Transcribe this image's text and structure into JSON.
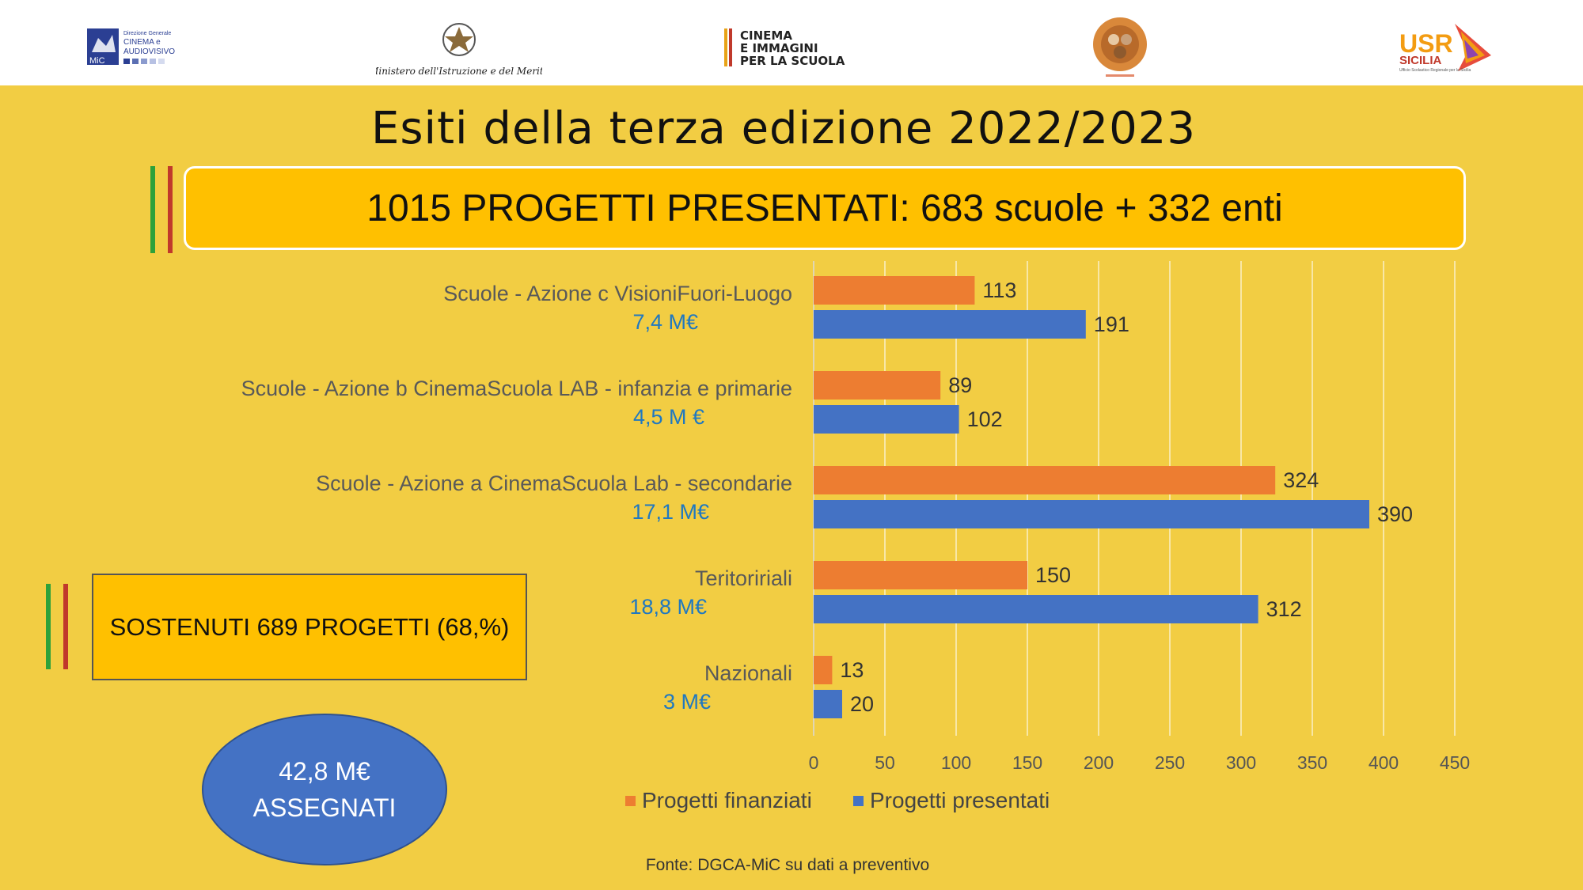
{
  "logos": {
    "mic_text": "Direzione Generale CINEMA e AUDIOVISIVO",
    "mic_short": "MiC",
    "ministero": "Ministero dell'Istruzione e del Merito",
    "cinema_line1": "CINEMA",
    "cinema_line2": "E IMMAGINI",
    "cinema_line3": "PER LA SCUOLA",
    "usr_main": "USR",
    "usr_sub": "SICILIA",
    "usr_caption": "Ufficio Scolastico Regionale per la Sicilia"
  },
  "title": "Esiti della terza edizione 2022/2023",
  "banner": "1015 PROGETTI PRESENTATI: 683 scuole + 332 enti",
  "support_box": "SOSTENUTI 689 PROGETTI (68,%)",
  "ellipse": {
    "line1": "42,8 M€",
    "line2": "ASSEGNATI"
  },
  "source": "Fonte: DGCA-MiC su dati a preventivo",
  "colors": {
    "background": "#F2CD43",
    "finanziati": "#ED7D31",
    "presentati": "#4472C4",
    "amount_text": "#1F78C1",
    "banner": "#FFC000"
  },
  "chart_data": {
    "type": "bar",
    "orientation": "horizontal",
    "categories": [
      "Scuole - Azione c VisioniFuori-Luogo",
      "Scuole - Azione b CinemaScuola LAB - infanzia e primarie",
      "Scuole - Azione a CinemaScuola Lab - secondarie",
      "Teritoririali",
      "Nazionali"
    ],
    "category_amounts": [
      "7,4 M€",
      "4,5 M €",
      "17,1 M€",
      "18,8 M€",
      "3 M€"
    ],
    "series": [
      {
        "name": "Progetti finanziati",
        "values": [
          113,
          89,
          324,
          150,
          13
        ]
      },
      {
        "name": "Progetti presentati",
        "values": [
          191,
          102,
          390,
          312,
          20
        ]
      }
    ],
    "xticks": [
      0,
      50,
      100,
      150,
      200,
      250,
      300,
      350,
      400,
      450
    ],
    "xlim": [
      0,
      450
    ],
    "grid": true,
    "legend": "bottom"
  }
}
